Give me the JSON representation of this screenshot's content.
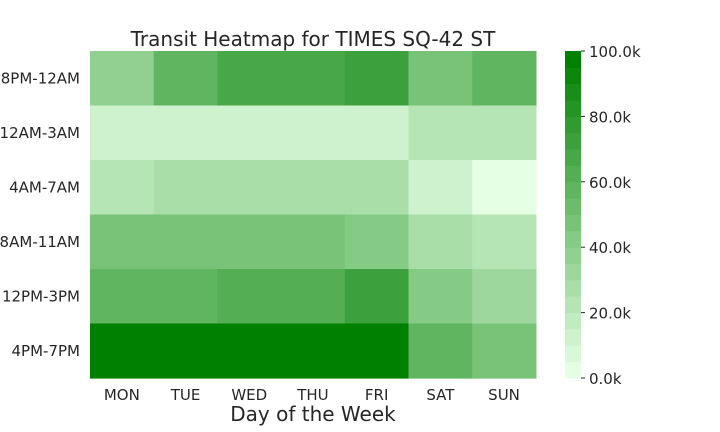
{
  "chart_data": {
    "type": "heatmap",
    "title": "Transit Heatmap for TIMES SQ-42 ST",
    "xlabel": "Day of the Week",
    "ylabel": "",
    "x_categories": [
      "MON",
      "TUE",
      "WED",
      "THU",
      "FRI",
      "SAT",
      "SUN"
    ],
    "y_categories": [
      "8PM-12AM",
      "12AM-3AM",
      "4AM-7AM",
      "8AM-11AM",
      "12PM-3PM",
      "4PM-7PM"
    ],
    "values": [
      [
        37000,
        55000,
        65000,
        65000,
        72000,
        47000,
        55000
      ],
      [
        14000,
        14000,
        14000,
        14000,
        14000,
        21000,
        21000
      ],
      [
        21000,
        27000,
        27000,
        27000,
        27000,
        12000,
        4000
      ],
      [
        47000,
        47000,
        47000,
        47000,
        42000,
        27000,
        21000
      ],
      [
        55000,
        55000,
        60000,
        60000,
        72000,
        42000,
        32000
      ],
      [
        100000,
        100000,
        100000,
        100000,
        100000,
        55000,
        47000
      ]
    ],
    "colorbar": {
      "min": 0,
      "max": 100000,
      "ticks": [
        0,
        20000,
        40000,
        60000,
        80000,
        100000
      ],
      "tick_labels": [
        "0.0k",
        "20.0k",
        "40.0k",
        "60.0k",
        "80.0k",
        "100.0k"
      ],
      "levels": 20,
      "color_low": "#e5ffe5",
      "color_high": "#008000"
    }
  }
}
